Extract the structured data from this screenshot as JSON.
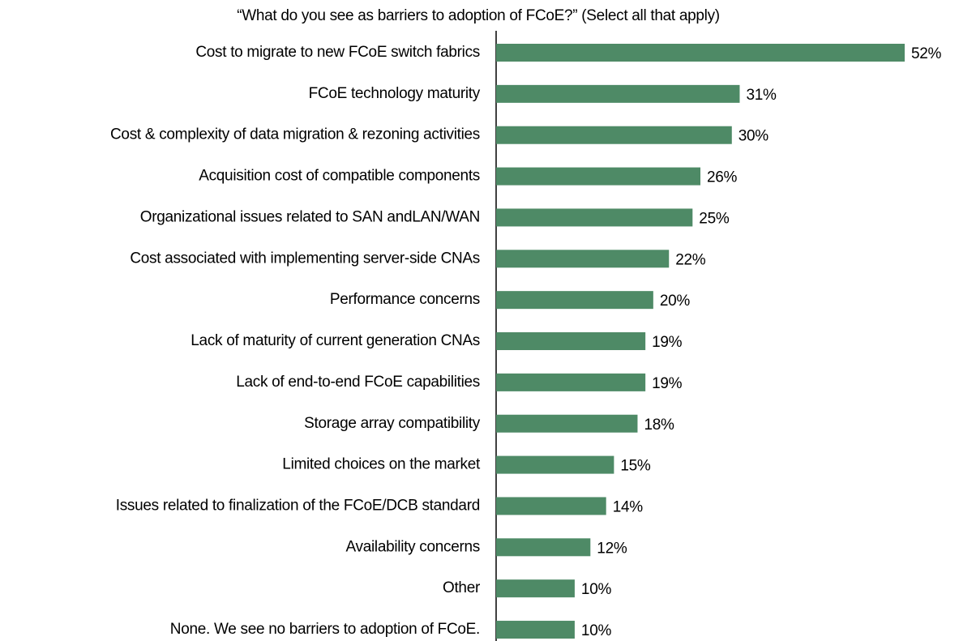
{
  "chart_data": {
    "type": "bar",
    "orientation": "horizontal",
    "title": "“What do you see as barriers to adoption of FCoE?” (Select all that apply)",
    "categories": [
      "Cost to migrate to new FCoE switch fabrics",
      "FCoE technology maturity",
      "Cost & complexity of data migration & rezoning activities",
      "Acquisition cost of compatible components",
      "Organizational issues related to SAN andLAN/WAN",
      "Cost associated with implementing server-side CNAs",
      "Performance concerns",
      "Lack of maturity of current generation CNAs",
      "Lack of end-to-end FCoE capabilities",
      "Storage array compatibility",
      "Limited choices on the market",
      "Issues related to finalization of the FCoE/DCB standard",
      "Availability concerns",
      "Other",
      "None. We see no barriers to adoption of FCoE."
    ],
    "values": [
      52,
      31,
      30,
      26,
      25,
      22,
      20,
      19,
      19,
      18,
      15,
      14,
      12,
      10,
      10
    ],
    "value_labels": [
      "52%",
      "31%",
      "30%",
      "26%",
      "25%",
      "22%",
      "20%",
      "19%",
      "19%",
      "18%",
      "15%",
      "14%",
      "12%",
      "10%",
      "10%"
    ],
    "color": "#4e8a66",
    "xlim": [
      0,
      52
    ]
  }
}
